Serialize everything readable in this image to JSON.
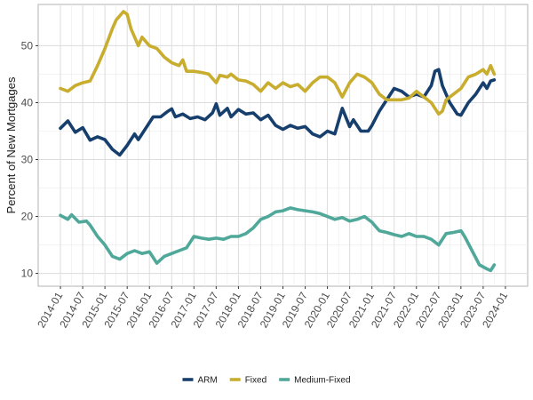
{
  "chart_data": {
    "type": "line",
    "title": "",
    "xlabel": "",
    "ylabel": "Percent of New Mortgages",
    "x_range": [
      "2014-01",
      "2024-01"
    ],
    "ylim": [
      10,
      55
    ],
    "grid": true,
    "legend_position": "bottom",
    "x_ticks": [
      "2014-01",
      "2014-07",
      "2015-01",
      "2015-07",
      "2016-01",
      "2016-07",
      "2017-01",
      "2017-07",
      "2018-01",
      "2018-07",
      "2019-01",
      "2019-07",
      "2020-01",
      "2020-07",
      "2021-01",
      "2021-07",
      "2022-01",
      "2022-07",
      "2023-01",
      "2023-07",
      "2024-01"
    ],
    "y_ticks": [
      10,
      20,
      30,
      40,
      50
    ],
    "series": [
      {
        "name": "ARM",
        "color": "#173f6e",
        "points": [
          [
            "2014-01",
            35.5
          ],
          [
            "2014-03",
            36.8
          ],
          [
            "2014-05",
            34.8
          ],
          [
            "2014-07",
            35.6
          ],
          [
            "2014-08",
            34.5
          ],
          [
            "2014-09",
            33.4
          ],
          [
            "2014-11",
            34.0
          ],
          [
            "2015-01",
            33.5
          ],
          [
            "2015-03",
            31.8
          ],
          [
            "2015-05",
            30.8
          ],
          [
            "2015-07",
            32.5
          ],
          [
            "2015-09",
            34.5
          ],
          [
            "2015-10",
            33.5
          ],
          [
            "2015-12",
            35.5
          ],
          [
            "2016-02",
            37.5
          ],
          [
            "2016-04",
            37.5
          ],
          [
            "2016-06",
            38.5
          ],
          [
            "2016-07",
            38.9
          ],
          [
            "2016-08",
            37.5
          ],
          [
            "2016-10",
            38.0
          ],
          [
            "2016-12",
            37.2
          ],
          [
            "2017-02",
            37.5
          ],
          [
            "2017-04",
            37.0
          ],
          [
            "2017-06",
            38.2
          ],
          [
            "2017-07",
            39.8
          ],
          [
            "2017-08",
            37.8
          ],
          [
            "2017-10",
            39.0
          ],
          [
            "2017-11",
            37.5
          ],
          [
            "2018-01",
            38.8
          ],
          [
            "2018-03",
            38.0
          ],
          [
            "2018-05",
            38.2
          ],
          [
            "2018-07",
            37.0
          ],
          [
            "2018-09",
            37.8
          ],
          [
            "2018-11",
            36.0
          ],
          [
            "2019-01",
            35.3
          ],
          [
            "2019-03",
            36.0
          ],
          [
            "2019-05",
            35.5
          ],
          [
            "2019-07",
            35.8
          ],
          [
            "2019-09",
            34.5
          ],
          [
            "2019-11",
            34.0
          ],
          [
            "2020-01",
            35.0
          ],
          [
            "2020-03",
            34.5
          ],
          [
            "2020-05",
            39.0
          ],
          [
            "2020-07",
            35.8
          ],
          [
            "2020-08",
            37.0
          ],
          [
            "2020-10",
            35.0
          ],
          [
            "2020-12",
            35.0
          ],
          [
            "2021-01",
            36.0
          ],
          [
            "2021-03",
            38.5
          ],
          [
            "2021-05",
            40.5
          ],
          [
            "2021-07",
            42.5
          ],
          [
            "2021-09",
            42.0
          ],
          [
            "2021-11",
            41.0
          ],
          [
            "2022-01",
            41.5
          ],
          [
            "2022-03",
            41.0
          ],
          [
            "2022-05",
            43.0
          ],
          [
            "2022-06",
            45.5
          ],
          [
            "2022-07",
            45.8
          ],
          [
            "2022-08",
            43.0
          ],
          [
            "2022-10",
            40.0
          ],
          [
            "2022-12",
            38.0
          ],
          [
            "2023-01",
            37.8
          ],
          [
            "2023-03",
            40.0
          ],
          [
            "2023-05",
            41.5
          ],
          [
            "2023-07",
            43.5
          ],
          [
            "2023-08",
            42.5
          ],
          [
            "2023-09",
            43.8
          ],
          [
            "2023-10",
            44.0
          ]
        ]
      },
      {
        "name": "Fixed",
        "color": "#c8ad2e",
        "points": [
          [
            "2014-01",
            42.5
          ],
          [
            "2014-03",
            42.0
          ],
          [
            "2014-05",
            43.0
          ],
          [
            "2014-07",
            43.5
          ],
          [
            "2014-09",
            43.8
          ],
          [
            "2014-11",
            46.5
          ],
          [
            "2015-01",
            49.5
          ],
          [
            "2015-03",
            53.0
          ],
          [
            "2015-04",
            54.5
          ],
          [
            "2015-06",
            56.0
          ],
          [
            "2015-07",
            55.5
          ],
          [
            "2015-08",
            53.0
          ],
          [
            "2015-10",
            50.0
          ],
          [
            "2015-11",
            51.5
          ],
          [
            "2016-01",
            50.0
          ],
          [
            "2016-03",
            49.5
          ],
          [
            "2016-05",
            48.0
          ],
          [
            "2016-07",
            47.0
          ],
          [
            "2016-09",
            46.5
          ],
          [
            "2016-10",
            47.5
          ],
          [
            "2016-11",
            45.5
          ],
          [
            "2017-01",
            45.5
          ],
          [
            "2017-03",
            45.3
          ],
          [
            "2017-05",
            45.0
          ],
          [
            "2017-07",
            43.5
          ],
          [
            "2017-08",
            44.8
          ],
          [
            "2017-10",
            44.5
          ],
          [
            "2017-11",
            45.0
          ],
          [
            "2018-01",
            44.0
          ],
          [
            "2018-03",
            43.8
          ],
          [
            "2018-05",
            43.2
          ],
          [
            "2018-07",
            42.0
          ],
          [
            "2018-09",
            43.5
          ],
          [
            "2018-11",
            42.5
          ],
          [
            "2019-01",
            43.5
          ],
          [
            "2019-03",
            42.8
          ],
          [
            "2019-05",
            43.2
          ],
          [
            "2019-07",
            42.0
          ],
          [
            "2019-09",
            43.5
          ],
          [
            "2019-11",
            44.5
          ],
          [
            "2020-01",
            44.5
          ],
          [
            "2020-03",
            43.5
          ],
          [
            "2020-05",
            41.0
          ],
          [
            "2020-07",
            43.5
          ],
          [
            "2020-09",
            45.0
          ],
          [
            "2020-11",
            44.5
          ],
          [
            "2021-01",
            43.5
          ],
          [
            "2021-03",
            41.5
          ],
          [
            "2021-05",
            40.5
          ],
          [
            "2021-07",
            40.5
          ],
          [
            "2021-09",
            40.5
          ],
          [
            "2021-11",
            40.8
          ],
          [
            "2022-01",
            42.0
          ],
          [
            "2022-03",
            41.0
          ],
          [
            "2022-05",
            40.0
          ],
          [
            "2022-07",
            38.0
          ],
          [
            "2022-08",
            38.5
          ],
          [
            "2022-09",
            40.5
          ],
          [
            "2022-11",
            41.5
          ],
          [
            "2023-01",
            42.5
          ],
          [
            "2023-03",
            44.5
          ],
          [
            "2023-05",
            45.0
          ],
          [
            "2023-07",
            45.8
          ],
          [
            "2023-08",
            45.0
          ],
          [
            "2023-09",
            46.5
          ],
          [
            "2023-10",
            45.0
          ]
        ]
      },
      {
        "name": "Medium-Fixed",
        "color": "#4fa899",
        "points": [
          [
            "2014-01",
            20.2
          ],
          [
            "2014-03",
            19.5
          ],
          [
            "2014-04",
            20.3
          ],
          [
            "2014-06",
            19.0
          ],
          [
            "2014-08",
            19.2
          ],
          [
            "2014-09",
            18.5
          ],
          [
            "2014-11",
            16.5
          ],
          [
            "2015-01",
            15.0
          ],
          [
            "2015-03",
            13.0
          ],
          [
            "2015-05",
            12.5
          ],
          [
            "2015-07",
            13.5
          ],
          [
            "2015-09",
            14.0
          ],
          [
            "2015-11",
            13.5
          ],
          [
            "2016-01",
            13.8
          ],
          [
            "2016-03",
            11.8
          ],
          [
            "2016-05",
            13.0
          ],
          [
            "2016-07",
            13.5
          ],
          [
            "2016-09",
            14.0
          ],
          [
            "2016-11",
            14.5
          ],
          [
            "2017-01",
            16.5
          ],
          [
            "2017-03",
            16.2
          ],
          [
            "2017-05",
            16.0
          ],
          [
            "2017-07",
            16.2
          ],
          [
            "2017-09",
            16.0
          ],
          [
            "2017-11",
            16.5
          ],
          [
            "2018-01",
            16.5
          ],
          [
            "2018-03",
            17.0
          ],
          [
            "2018-05",
            18.0
          ],
          [
            "2018-07",
            19.5
          ],
          [
            "2018-09",
            20.0
          ],
          [
            "2018-11",
            20.8
          ],
          [
            "2019-01",
            21.0
          ],
          [
            "2019-03",
            21.5
          ],
          [
            "2019-05",
            21.2
          ],
          [
            "2019-07",
            21.0
          ],
          [
            "2019-09",
            20.8
          ],
          [
            "2019-11",
            20.5
          ],
          [
            "2020-01",
            20.0
          ],
          [
            "2020-03",
            19.5
          ],
          [
            "2020-05",
            19.8
          ],
          [
            "2020-07",
            19.2
          ],
          [
            "2020-09",
            19.5
          ],
          [
            "2020-11",
            20.0
          ],
          [
            "2021-01",
            19.0
          ],
          [
            "2021-03",
            17.5
          ],
          [
            "2021-05",
            17.2
          ],
          [
            "2021-07",
            16.8
          ],
          [
            "2021-09",
            16.5
          ],
          [
            "2021-11",
            17.0
          ],
          [
            "2022-01",
            16.5
          ],
          [
            "2022-03",
            16.5
          ],
          [
            "2022-05",
            16.0
          ],
          [
            "2022-07",
            15.0
          ],
          [
            "2022-09",
            17.0
          ],
          [
            "2022-11",
            17.2
          ],
          [
            "2023-01",
            17.5
          ],
          [
            "2023-02",
            16.5
          ],
          [
            "2023-04",
            14.0
          ],
          [
            "2023-06",
            11.5
          ],
          [
            "2023-08",
            10.8
          ],
          [
            "2023-09",
            10.5
          ],
          [
            "2023-10",
            11.5
          ]
        ]
      }
    ]
  }
}
